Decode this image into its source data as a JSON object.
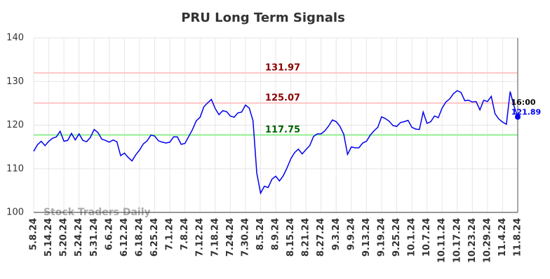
{
  "chart_data": {
    "type": "line",
    "title": "PRU Long Term Signals",
    "watermark": "Stock Traders Daily",
    "categories": [
      "5.8.24",
      null,
      null,
      null,
      "5.14.24",
      null,
      null,
      null,
      "5.20.24",
      null,
      null,
      null,
      "5.24.24",
      null,
      null,
      null,
      "5.31.24",
      null,
      null,
      null,
      "6.6.24",
      null,
      null,
      null,
      "6.12.24",
      null,
      null,
      null,
      "6.18.24",
      null,
      null,
      null,
      "6.25.24",
      null,
      null,
      null,
      "7.1.24",
      null,
      null,
      null,
      "7.8.24",
      null,
      null,
      null,
      "7.12.24",
      null,
      null,
      null,
      "7.18.24",
      null,
      null,
      null,
      "7.24.24",
      null,
      null,
      null,
      "7.30.24",
      null,
      null,
      null,
      "8.5.24",
      null,
      null,
      null,
      "8.9.24",
      null,
      null,
      null,
      "8.15.24",
      null,
      null,
      null,
      "8.21.24",
      null,
      null,
      null,
      "8.27.24",
      null,
      null,
      null,
      "9.3.24",
      null,
      null,
      null,
      "9.9.24",
      null,
      null,
      null,
      "9.13.24",
      null,
      null,
      null,
      "9.19.24",
      null,
      null,
      null,
      "9.25.24",
      null,
      null,
      null,
      "10.1.24",
      null,
      null,
      null,
      "10.7.24",
      null,
      null,
      null,
      "10.11.24",
      null,
      null,
      null,
      "10.17.24",
      null,
      null,
      null,
      "10.23.24",
      null,
      null,
      null,
      "10.29.24",
      null,
      null,
      null,
      "11.4.24",
      null,
      null,
      null,
      "11.8.24"
    ],
    "values": [
      114.0,
      115.5,
      116.3,
      115.3,
      116.3,
      117.0,
      117.3,
      118.6,
      116.3,
      116.5,
      118.1,
      116.6,
      118.0,
      116.5,
      116.2,
      117.2,
      119.0,
      118.3,
      116.8,
      116.5,
      116.1,
      116.6,
      116.2,
      113.0,
      113.6,
      112.6,
      111.8,
      113.2,
      114.3,
      115.7,
      116.4,
      117.7,
      117.5,
      116.4,
      116.1,
      115.9,
      116.1,
      117.3,
      117.3,
      115.6,
      115.8,
      117.4,
      119.0,
      121.0,
      121.8,
      124.2,
      125.1,
      125.9,
      123.8,
      122.4,
      123.3,
      123.1,
      122.1,
      121.8,
      122.8,
      123.0,
      124.6,
      123.9,
      121.0,
      109.0,
      104.4,
      106.0,
      105.7,
      107.6,
      108.3,
      107.2,
      108.4,
      110.2,
      112.3,
      113.7,
      114.5,
      113.4,
      114.4,
      115.3,
      117.4,
      118.0,
      118.0,
      118.7,
      119.8,
      121.2,
      120.8,
      119.7,
      117.9,
      113.3,
      115.0,
      114.8,
      114.8,
      115.9,
      116.3,
      117.7,
      118.7,
      119.5,
      121.9,
      121.5,
      120.9,
      119.9,
      119.7,
      120.6,
      120.8,
      121.1,
      119.5,
      119.1,
      119.0,
      123.0,
      120.4,
      120.8,
      122.1,
      121.7,
      123.9,
      125.3,
      126.0,
      127.2,
      127.9,
      127.5,
      125.6,
      125.7,
      125.3,
      125.4,
      123.5,
      125.7,
      125.4,
      126.6,
      122.6,
      121.4,
      120.7,
      120.2,
      127.7,
      124.4,
      121.89
    ],
    "color": "#0000ee",
    "last_time": "16:00",
    "hlines": [
      {
        "value": 131.97,
        "color": "#ffc8c8",
        "label_color": "#8b0000"
      },
      {
        "value": 125.07,
        "color": "#ffc8c8",
        "label_color": "#8b0000"
      },
      {
        "value": 117.75,
        "color": "#90ee90",
        "label_color": "#006400"
      }
    ],
    "ylim": [
      100,
      140
    ],
    "yticks": [
      100,
      110,
      120,
      130,
      140
    ],
    "grid": true
  }
}
